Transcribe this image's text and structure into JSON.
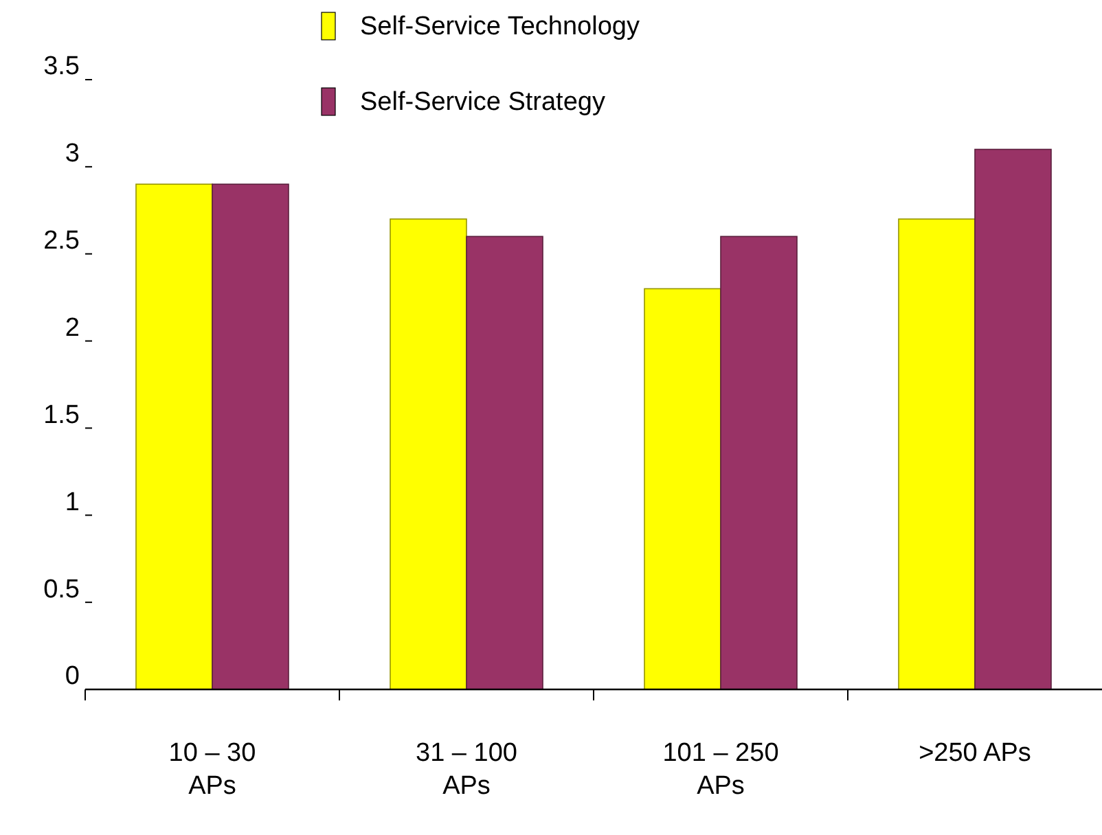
{
  "chart_data": {
    "type": "bar",
    "categories": [
      "10 – 30 APs",
      "31 – 100 APs",
      "101 – 250 APs",
      ">250 APs"
    ],
    "series": [
      {
        "name": "Self-Service Technology",
        "color": "#ffff00",
        "values": [
          2.9,
          2.7,
          2.3,
          2.7
        ]
      },
      {
        "name": "Self-Service Strategy",
        "color": "#993366",
        "values": [
          2.9,
          2.6,
          2.6,
          3.1
        ]
      }
    ],
    "ylim": [
      0,
      3.5
    ],
    "yticks": [
      0,
      0.5,
      1,
      1.5,
      2,
      2.5,
      3,
      3.5
    ],
    "grid": false,
    "legend": "top"
  }
}
